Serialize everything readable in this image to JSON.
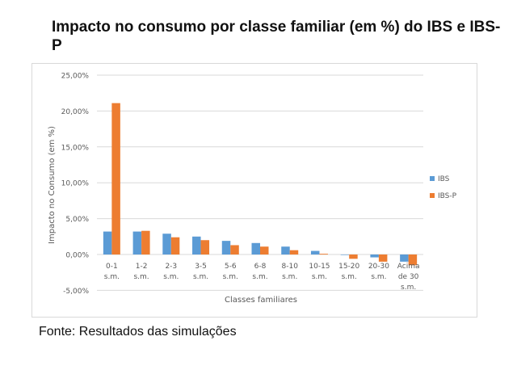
{
  "title": "Impacto no consumo por classe familiar (em %) do IBS e IBS-P",
  "source": "Fonte: Resultados das simulações",
  "colors": {
    "ibs": "#5b9bd5",
    "ibs_p": "#ed7d31",
    "grid": "#d9d9d9",
    "axis_text": "#595959"
  },
  "chart_data": {
    "type": "bar",
    "title": "Impacto no consumo por classe familiar (em %) do IBS e IBS-P",
    "xlabel": "Classes familiares",
    "ylabel": "Impacto no Consumo (em %)",
    "ylim": [
      -5,
      25
    ],
    "yticks": [
      "25,00%",
      "20,00%",
      "15,00%",
      "10,00%",
      "5,00%",
      "0,00%",
      "-5,00%"
    ],
    "ytick_values": [
      25,
      20,
      15,
      10,
      5,
      0,
      -5
    ],
    "grid": true,
    "legend_position": "right",
    "categories": [
      "0-1 s.m.",
      "1-2 s.m.",
      "2-3 s.m.",
      "3-5 s.m.",
      "5-6 s.m.",
      "6-8 s.m.",
      "8-10 s.m.",
      "10-15 s.m.",
      "15-20 s.m.",
      "20-30 s.m.",
      "Acima de 30 s.m."
    ],
    "category_lines": [
      [
        "0-1",
        "s.m."
      ],
      [
        "1-2",
        "s.m."
      ],
      [
        "2-3",
        "s.m."
      ],
      [
        "3-5",
        "s.m."
      ],
      [
        "5-6",
        "s.m."
      ],
      [
        "6-8",
        "s.m."
      ],
      [
        "8-10",
        "s.m."
      ],
      [
        "10-15",
        "s.m."
      ],
      [
        "15-20",
        "s.m."
      ],
      [
        "20-30",
        "s.m."
      ],
      [
        "Acima",
        "de 30",
        "s.m."
      ]
    ],
    "series": [
      {
        "name": "IBS",
        "color": "#5b9bd5",
        "values": [
          3.2,
          3.2,
          2.9,
          2.5,
          1.9,
          1.6,
          1.1,
          0.5,
          -0.05,
          -0.4,
          -1.0
        ]
      },
      {
        "name": "IBS-P",
        "color": "#ed7d31",
        "values": [
          21.1,
          3.3,
          2.4,
          2.0,
          1.3,
          1.1,
          0.6,
          0.1,
          -0.6,
          -1.0,
          -1.5
        ]
      }
    ]
  }
}
